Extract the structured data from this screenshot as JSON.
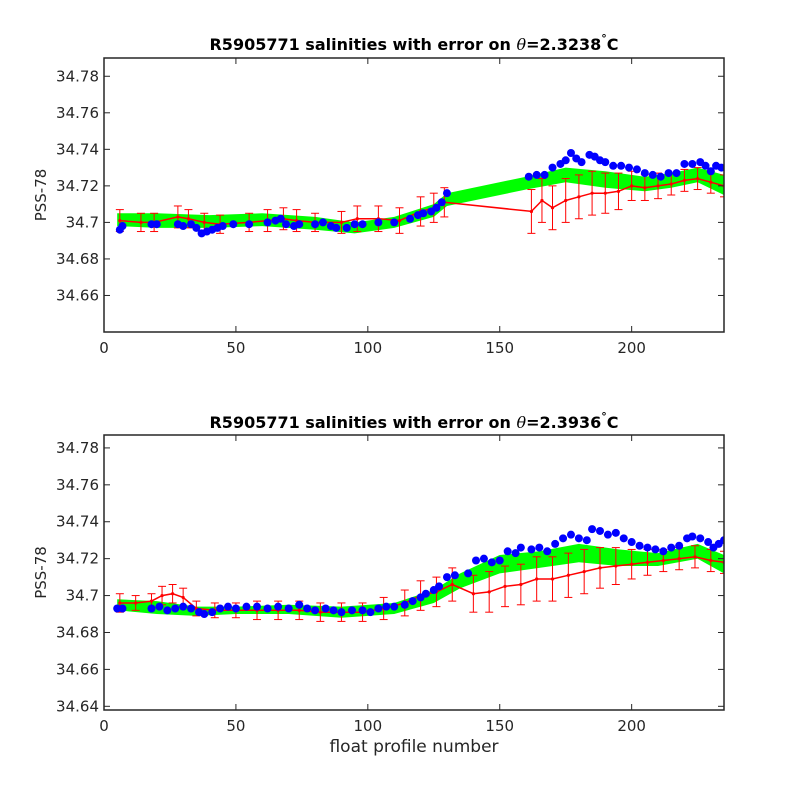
{
  "figure": {
    "xlabel": "float profile number"
  },
  "chart_data": [
    {
      "type": "scatter",
      "title": "R5905771 salinities with error on θ=2.3238°C",
      "title_parts": {
        "prefix": "R5905771 salinities with error on ",
        "theta": "θ",
        "value": "=2.3238",
        "degree": "°",
        "unit": "C"
      },
      "ylabel": "PSS-78",
      "xlabel": "",
      "xlim": [
        0,
        235
      ],
      "ylim": [
        34.64,
        34.79
      ],
      "xticks": [
        0,
        50,
        100,
        150,
        200
      ],
      "xtick_labels": [
        "0",
        "50",
        "100",
        "150",
        "200"
      ],
      "yticks": [
        34.66,
        34.68,
        34.7,
        34.72,
        34.74,
        34.76,
        34.78
      ],
      "ytick_labels": [
        "34.66",
        "34.68",
        "34.7",
        "34.72",
        "34.74",
        "34.76",
        "34.78"
      ],
      "grid": false,
      "series_colors": {
        "band": "#00ff00",
        "mapped": "#ff0000",
        "float": "#0000ff"
      },
      "band": {
        "x": [
          5,
          20,
          40,
          60,
          80,
          95,
          110,
          125,
          130,
          160,
          175,
          190,
          205,
          215,
          225,
          235
        ],
        "upper": [
          34.705,
          34.705,
          34.704,
          34.705,
          34.703,
          34.7,
          34.703,
          34.71,
          34.716,
          34.725,
          34.73,
          34.728,
          34.725,
          34.727,
          34.73,
          34.726
        ],
        "lower": [
          34.698,
          34.697,
          34.697,
          34.698,
          34.696,
          34.694,
          34.697,
          34.703,
          34.709,
          34.718,
          34.722,
          34.719,
          34.717,
          34.719,
          34.722,
          34.715
        ]
      },
      "mapped": [
        {
          "x": 6,
          "y": 34.701,
          "err": 0.006
        },
        {
          "x": 14,
          "y": 34.7,
          "err": 0.005
        },
        {
          "x": 19,
          "y": 34.7,
          "err": 0.005
        },
        {
          "x": 28,
          "y": 34.703,
          "err": 0.006
        },
        {
          "x": 32,
          "y": 34.702,
          "err": 0.005
        },
        {
          "x": 38,
          "y": 34.7,
          "err": 0.005
        },
        {
          "x": 44,
          "y": 34.699,
          "err": 0.005
        },
        {
          "x": 55,
          "y": 34.7,
          "err": 0.005
        },
        {
          "x": 62,
          "y": 34.701,
          "err": 0.006
        },
        {
          "x": 68,
          "y": 34.702,
          "err": 0.006
        },
        {
          "x": 73,
          "y": 34.701,
          "err": 0.006
        },
        {
          "x": 80,
          "y": 34.7,
          "err": 0.005
        },
        {
          "x": 90,
          "y": 34.7,
          "err": 0.006
        },
        {
          "x": 96,
          "y": 34.702,
          "err": 0.007
        },
        {
          "x": 104,
          "y": 34.702,
          "err": 0.007
        },
        {
          "x": 112,
          "y": 34.701,
          "err": 0.007
        },
        {
          "x": 120,
          "y": 34.706,
          "err": 0.008
        },
        {
          "x": 125,
          "y": 34.708,
          "err": 0.008
        },
        {
          "x": 129,
          "y": 34.711,
          "err": 0.008
        },
        {
          "x": 162,
          "y": 34.706,
          "err": 0.012
        },
        {
          "x": 166,
          "y": 34.712,
          "err": 0.012
        },
        {
          "x": 170,
          "y": 34.708,
          "err": 0.012
        },
        {
          "x": 175,
          "y": 34.712,
          "err": 0.012
        },
        {
          "x": 180,
          "y": 34.714,
          "err": 0.012
        },
        {
          "x": 185,
          "y": 34.716,
          "err": 0.012
        },
        {
          "x": 190,
          "y": 34.716,
          "err": 0.011
        },
        {
          "x": 195,
          "y": 34.717,
          "err": 0.01
        },
        {
          "x": 200,
          "y": 34.72,
          "err": 0.008
        },
        {
          "x": 205,
          "y": 34.719,
          "err": 0.007
        },
        {
          "x": 210,
          "y": 34.72,
          "err": 0.007
        },
        {
          "x": 215,
          "y": 34.721,
          "err": 0.006
        },
        {
          "x": 220,
          "y": 34.723,
          "err": 0.006
        },
        {
          "x": 225,
          "y": 34.724,
          "err": 0.006
        },
        {
          "x": 230,
          "y": 34.722,
          "err": 0.006
        },
        {
          "x": 235,
          "y": 34.72,
          "err": 0.006
        }
      ],
      "float": [
        [
          6,
          34.696
        ],
        [
          7,
          34.698
        ],
        [
          18,
          34.699
        ],
        [
          20,
          34.699
        ],
        [
          28,
          34.699
        ],
        [
          30,
          34.698
        ],
        [
          33,
          34.699
        ],
        [
          35,
          34.697
        ],
        [
          37,
          34.694
        ],
        [
          39,
          34.695
        ],
        [
          41,
          34.696
        ],
        [
          43,
          34.697
        ],
        [
          45,
          34.698
        ],
        [
          49,
          34.699
        ],
        [
          55,
          34.699
        ],
        [
          62,
          34.7
        ],
        [
          65,
          34.701
        ],
        [
          67,
          34.702
        ],
        [
          69,
          34.699
        ],
        [
          72,
          34.698
        ],
        [
          74,
          34.699
        ],
        [
          80,
          34.699
        ],
        [
          83,
          34.7
        ],
        [
          86,
          34.698
        ],
        [
          88,
          34.697
        ],
        [
          92,
          34.697
        ],
        [
          95,
          34.699
        ],
        [
          98,
          34.699
        ],
        [
          104,
          34.7
        ],
        [
          110,
          34.7
        ],
        [
          116,
          34.702
        ],
        [
          119,
          34.704
        ],
        [
          121,
          34.705
        ],
        [
          124,
          34.706
        ],
        [
          126,
          34.708
        ],
        [
          128,
          34.711
        ],
        [
          130,
          34.716
        ],
        [
          161,
          34.725
        ],
        [
          164,
          34.726
        ],
        [
          167,
          34.726
        ],
        [
          170,
          34.73
        ],
        [
          173,
          34.732
        ],
        [
          175,
          34.734
        ],
        [
          177,
          34.738
        ],
        [
          179,
          34.735
        ],
        [
          181,
          34.733
        ],
        [
          184,
          34.737
        ],
        [
          186,
          34.736
        ],
        [
          188,
          34.734
        ],
        [
          190,
          34.733
        ],
        [
          193,
          34.731
        ],
        [
          196,
          34.731
        ],
        [
          199,
          34.73
        ],
        [
          202,
          34.729
        ],
        [
          205,
          34.727
        ],
        [
          208,
          34.726
        ],
        [
          211,
          34.725
        ],
        [
          214,
          34.727
        ],
        [
          217,
          34.727
        ],
        [
          220,
          34.732
        ],
        [
          223,
          34.732
        ],
        [
          226,
          34.733
        ],
        [
          228,
          34.731
        ],
        [
          230,
          34.728
        ],
        [
          232,
          34.731
        ],
        [
          234,
          34.73
        ]
      ]
    },
    {
      "type": "scatter",
      "title": "R5905771 salinities with error on θ=2.3936°C",
      "title_parts": {
        "prefix": "R5905771 salinities with error on ",
        "theta": "θ",
        "value": "=2.3936",
        "degree": "°",
        "unit": "C"
      },
      "ylabel": "PSS-78",
      "xlabel": "float profile number",
      "xlim": [
        0,
        235
      ],
      "ylim": [
        34.638,
        34.787
      ],
      "xticks": [
        0,
        50,
        100,
        150,
        200
      ],
      "xtick_labels": [
        "0",
        "50",
        "100",
        "150",
        "200"
      ],
      "yticks": [
        34.64,
        34.66,
        34.68,
        34.7,
        34.72,
        34.74,
        34.76,
        34.78
      ],
      "ytick_labels": [
        "34.64",
        "34.66",
        "34.68",
        "34.7",
        "34.72",
        "34.74",
        "34.76",
        "34.78"
      ],
      "grid": false,
      "series_colors": {
        "band": "#00ff00",
        "mapped": "#ff0000",
        "float": "#0000ff"
      },
      "band": {
        "x": [
          5,
          20,
          35,
          50,
          70,
          90,
          110,
          125,
          135,
          150,
          165,
          180,
          195,
          210,
          225,
          235
        ],
        "upper": [
          34.698,
          34.697,
          34.694,
          34.694,
          34.695,
          34.694,
          34.696,
          34.703,
          34.712,
          34.722,
          34.724,
          34.728,
          34.725,
          34.723,
          34.728,
          34.722
        ],
        "lower": [
          34.692,
          34.69,
          34.689,
          34.69,
          34.69,
          34.688,
          34.69,
          34.696,
          34.704,
          34.712,
          34.715,
          34.718,
          34.716,
          34.716,
          34.72,
          34.712
        ]
      },
      "mapped": [
        {
          "x": 6,
          "y": 34.696,
          "err": 0.005
        },
        {
          "x": 12,
          "y": 34.696,
          "err": 0.004
        },
        {
          "x": 18,
          "y": 34.697,
          "err": 0.004
        },
        {
          "x": 22,
          "y": 34.7,
          "err": 0.005
        },
        {
          "x": 26,
          "y": 34.701,
          "err": 0.005
        },
        {
          "x": 30,
          "y": 34.699,
          "err": 0.005
        },
        {
          "x": 35,
          "y": 34.693,
          "err": 0.004
        },
        {
          "x": 42,
          "y": 34.692,
          "err": 0.004
        },
        {
          "x": 50,
          "y": 34.692,
          "err": 0.004
        },
        {
          "x": 58,
          "y": 34.692,
          "err": 0.005
        },
        {
          "x": 66,
          "y": 34.692,
          "err": 0.005
        },
        {
          "x": 74,
          "y": 34.692,
          "err": 0.005
        },
        {
          "x": 82,
          "y": 34.691,
          "err": 0.005
        },
        {
          "x": 90,
          "y": 34.691,
          "err": 0.005
        },
        {
          "x": 98,
          "y": 34.691,
          "err": 0.005
        },
        {
          "x": 106,
          "y": 34.693,
          "err": 0.006
        },
        {
          "x": 114,
          "y": 34.696,
          "err": 0.007
        },
        {
          "x": 120,
          "y": 34.7,
          "err": 0.008
        },
        {
          "x": 126,
          "y": 34.702,
          "err": 0.008
        },
        {
          "x": 132,
          "y": 34.706,
          "err": 0.009
        },
        {
          "x": 140,
          "y": 34.701,
          "err": 0.01
        },
        {
          "x": 146,
          "y": 34.702,
          "err": 0.011
        },
        {
          "x": 152,
          "y": 34.705,
          "err": 0.011
        },
        {
          "x": 158,
          "y": 34.706,
          "err": 0.011
        },
        {
          "x": 164,
          "y": 34.709,
          "err": 0.012
        },
        {
          "x": 170,
          "y": 34.709,
          "err": 0.012
        },
        {
          "x": 176,
          "y": 34.711,
          "err": 0.012
        },
        {
          "x": 182,
          "y": 34.713,
          "err": 0.012
        },
        {
          "x": 188,
          "y": 34.715,
          "err": 0.011
        },
        {
          "x": 194,
          "y": 34.716,
          "err": 0.01
        },
        {
          "x": 200,
          "y": 34.717,
          "err": 0.008
        },
        {
          "x": 206,
          "y": 34.718,
          "err": 0.007
        },
        {
          "x": 212,
          "y": 34.719,
          "err": 0.006
        },
        {
          "x": 218,
          "y": 34.72,
          "err": 0.006
        },
        {
          "x": 224,
          "y": 34.721,
          "err": 0.006
        },
        {
          "x": 230,
          "y": 34.719,
          "err": 0.006
        },
        {
          "x": 235,
          "y": 34.718,
          "err": 0.006
        }
      ],
      "float": [
        [
          5,
          34.693
        ],
        [
          7,
          34.693
        ],
        [
          18,
          34.693
        ],
        [
          21,
          34.694
        ],
        [
          24,
          34.692
        ],
        [
          27,
          34.693
        ],
        [
          30,
          34.694
        ],
        [
          33,
          34.693
        ],
        [
          36,
          34.691
        ],
        [
          38,
          34.69
        ],
        [
          41,
          34.691
        ],
        [
          44,
          34.693
        ],
        [
          47,
          34.694
        ],
        [
          50,
          34.693
        ],
        [
          54,
          34.694
        ],
        [
          58,
          34.694
        ],
        [
          62,
          34.693
        ],
        [
          66,
          34.694
        ],
        [
          70,
          34.693
        ],
        [
          74,
          34.695
        ],
        [
          77,
          34.693
        ],
        [
          80,
          34.692
        ],
        [
          84,
          34.693
        ],
        [
          87,
          34.692
        ],
        [
          90,
          34.691
        ],
        [
          94,
          34.692
        ],
        [
          98,
          34.692
        ],
        [
          101,
          34.691
        ],
        [
          104,
          34.693
        ],
        [
          107,
          34.694
        ],
        [
          110,
          34.694
        ],
        [
          114,
          34.695
        ],
        [
          117,
          34.697
        ],
        [
          120,
          34.699
        ],
        [
          122,
          34.701
        ],
        [
          125,
          34.703
        ],
        [
          127,
          34.705
        ],
        [
          130,
          34.71
        ],
        [
          133,
          34.711
        ],
        [
          138,
          34.712
        ],
        [
          141,
          34.719
        ],
        [
          144,
          34.72
        ],
        [
          147,
          34.718
        ],
        [
          150,
          34.719
        ],
        [
          153,
          34.724
        ],
        [
          156,
          34.723
        ],
        [
          158,
          34.726
        ],
        [
          162,
          34.725
        ],
        [
          165,
          34.726
        ],
        [
          168,
          34.724
        ],
        [
          171,
          34.728
        ],
        [
          174,
          34.731
        ],
        [
          177,
          34.733
        ],
        [
          180,
          34.731
        ],
        [
          183,
          34.73
        ],
        [
          185,
          34.736
        ],
        [
          188,
          34.735
        ],
        [
          191,
          34.733
        ],
        [
          194,
          34.734
        ],
        [
          197,
          34.731
        ],
        [
          200,
          34.729
        ],
        [
          203,
          34.727
        ],
        [
          206,
          34.726
        ],
        [
          209,
          34.725
        ],
        [
          212,
          34.724
        ],
        [
          215,
          34.726
        ],
        [
          218,
          34.727
        ],
        [
          221,
          34.731
        ],
        [
          223,
          34.732
        ],
        [
          226,
          34.731
        ],
        [
          229,
          34.729
        ],
        [
          231,
          34.726
        ],
        [
          233,
          34.728
        ],
        [
          235,
          34.73
        ]
      ]
    }
  ]
}
